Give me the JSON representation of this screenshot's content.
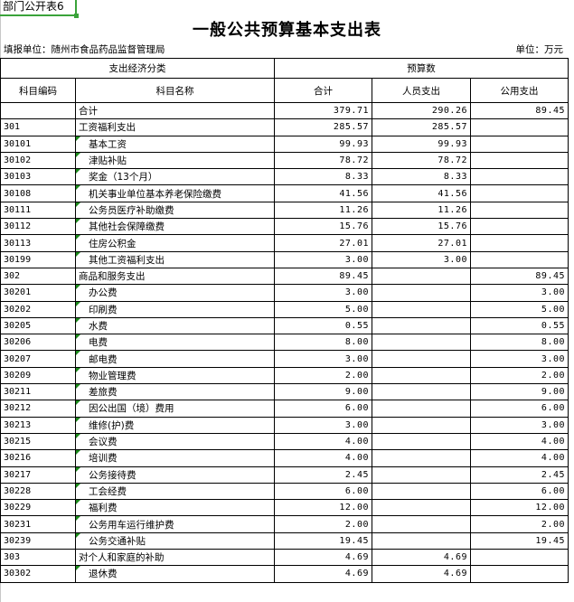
{
  "sheet_tag": "部门公开表6",
  "title": "一般公共预算基本支出表",
  "reporting_unit": "填报单位：随州市食品药品监督管理局",
  "unit": "单位：万元",
  "header": {
    "group_left": "支出经济分类",
    "group_right": "预算数",
    "columns": [
      "科目编码",
      "科目名称",
      "合计",
      "人员支出",
      "公用支出"
    ]
  },
  "rows": [
    {
      "code": "",
      "name": "合计",
      "total": "379.71",
      "personnel": "290.26",
      "public": "89.45",
      "level": 0
    },
    {
      "code": "301",
      "name": "工资福利支出",
      "total": "285.57",
      "personnel": "285.57",
      "public": "",
      "level": 0
    },
    {
      "code": "30101",
      "name": "基本工资",
      "total": "99.93",
      "personnel": "99.93",
      "public": "",
      "level": 1
    },
    {
      "code": "30102",
      "name": "津贴补贴",
      "total": "78.72",
      "personnel": "78.72",
      "public": "",
      "level": 1
    },
    {
      "code": "30103",
      "name": "奖金（13个月）",
      "total": "8.33",
      "personnel": "8.33",
      "public": "",
      "level": 1
    },
    {
      "code": "30108",
      "name": "机关事业单位基本养老保险缴费",
      "total": "41.56",
      "personnel": "41.56",
      "public": "",
      "level": 1
    },
    {
      "code": "30111",
      "name": "公务员医疗补助缴费",
      "total": "11.26",
      "personnel": "11.26",
      "public": "",
      "level": 1
    },
    {
      "code": "30112",
      "name": "其他社会保障缴费",
      "total": "15.76",
      "personnel": "15.76",
      "public": "",
      "level": 1
    },
    {
      "code": "30113",
      "name": "住房公积金",
      "total": "27.01",
      "personnel": "27.01",
      "public": "",
      "level": 1
    },
    {
      "code": "30199",
      "name": "其他工资福利支出",
      "total": "3.00",
      "personnel": "3.00",
      "public": "",
      "level": 1
    },
    {
      "code": "302",
      "name": "商品和服务支出",
      "total": "89.45",
      "personnel": "",
      "public": "89.45",
      "level": 0
    },
    {
      "code": "30201",
      "name": "办公费",
      "total": "3.00",
      "personnel": "",
      "public": "3.00",
      "level": 1
    },
    {
      "code": "30202",
      "name": "印刷费",
      "total": "5.00",
      "personnel": "",
      "public": "5.00",
      "level": 1
    },
    {
      "code": "30205",
      "name": "水费",
      "total": "0.55",
      "personnel": "",
      "public": "0.55",
      "level": 1
    },
    {
      "code": "30206",
      "name": "电费",
      "total": "8.00",
      "personnel": "",
      "public": "8.00",
      "level": 1
    },
    {
      "code": "30207",
      "name": "邮电费",
      "total": "3.00",
      "personnel": "",
      "public": "3.00",
      "level": 1
    },
    {
      "code": "30209",
      "name": "物业管理费",
      "total": "2.00",
      "personnel": "",
      "public": "2.00",
      "level": 1
    },
    {
      "code": "30211",
      "name": "差旅费",
      "total": "9.00",
      "personnel": "",
      "public": "9.00",
      "level": 1
    },
    {
      "code": "30212",
      "name": "因公出国（境）费用",
      "total": "6.00",
      "personnel": "",
      "public": "6.00",
      "level": 1
    },
    {
      "code": "30213",
      "name": "维修(护)费",
      "total": "3.00",
      "personnel": "",
      "public": "3.00",
      "level": 1
    },
    {
      "code": "30215",
      "name": "会议费",
      "total": "4.00",
      "personnel": "",
      "public": "4.00",
      "level": 1
    },
    {
      "code": "30216",
      "name": "培训费",
      "total": "4.00",
      "personnel": "",
      "public": "4.00",
      "level": 1
    },
    {
      "code": "30217",
      "name": "公务接待费",
      "total": "2.45",
      "personnel": "",
      "public": "2.45",
      "level": 1
    },
    {
      "code": "30228",
      "name": "工会经费",
      "total": "6.00",
      "personnel": "",
      "public": "6.00",
      "level": 1
    },
    {
      "code": "30229",
      "name": "福利费",
      "total": "12.00",
      "personnel": "",
      "public": "12.00",
      "level": 1
    },
    {
      "code": "30231",
      "name": "公务用车运行维护费",
      "total": "2.00",
      "personnel": "",
      "public": "2.00",
      "level": 1
    },
    {
      "code": "30239",
      "name": "公务交通补贴",
      "total": "19.45",
      "personnel": "",
      "public": "19.45",
      "level": 1
    },
    {
      "code": "303",
      "name": "对个人和家庭的补助",
      "total": "4.69",
      "personnel": "4.69",
      "public": "",
      "level": 0
    },
    {
      "code": "30302",
      "name": "退休费",
      "total": "4.69",
      "personnel": "4.69",
      "public": "",
      "level": 1
    }
  ],
  "colors": {
    "tag_border": "#3aa33a",
    "comment_marker": "#1a8a1a"
  }
}
